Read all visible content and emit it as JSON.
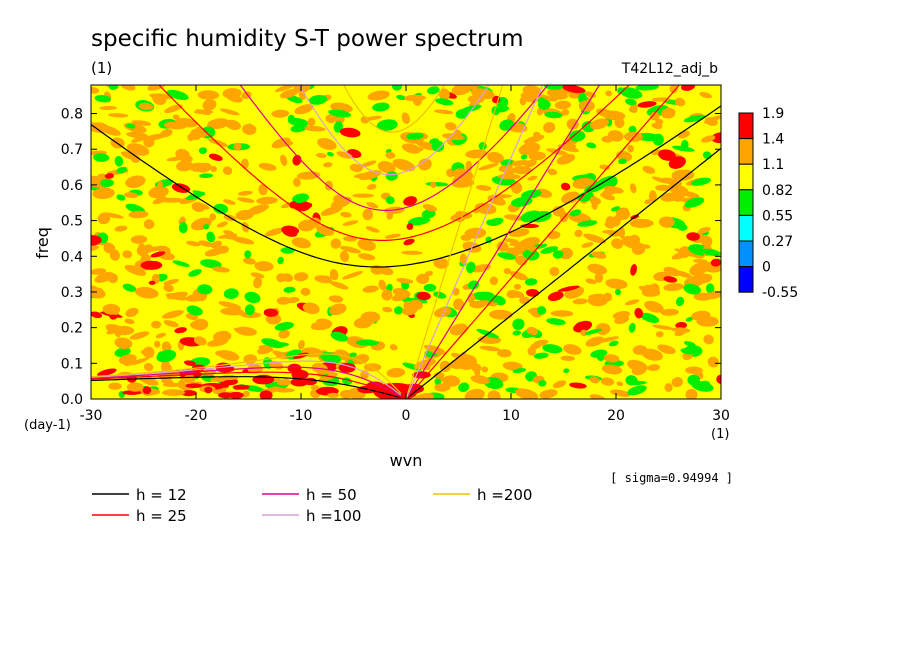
{
  "chart_data": {
    "type": "heatmap",
    "title": "specific humidity S-T power spectrum",
    "subtitle": "(1)",
    "run_label": "T42L12_adj_b",
    "xlabel": "wvn",
    "ylabel": "freq",
    "x_unit": "(1)",
    "y_unit": "(day-1)",
    "xlim": [
      -30,
      30
    ],
    "ylim": [
      0,
      0.88
    ],
    "x_ticks": [
      -30,
      -20,
      -10,
      0,
      10,
      20,
      30
    ],
    "x_tick_labels": [
      "-30",
      "-20",
      "-10",
      "0",
      "10",
      "20",
      "30"
    ],
    "y_ticks": [
      0,
      0.1,
      0.2,
      0.3,
      0.4,
      0.5,
      0.6,
      0.7,
      0.8
    ],
    "y_tick_labels": [
      "0.0",
      "0.1",
      "0.2",
      "0.3",
      "0.4",
      "0.5",
      "0.6",
      "0.7",
      "0.8"
    ],
    "colorbar": {
      "labels": [
        "1.9",
        "1.4",
        "1.1",
        "0.82",
        "0.55",
        "0.27",
        "0",
        "-0.55"
      ],
      "colors": [
        "#ff0000",
        "#ffa500",
        "#ffff00",
        "#00ee00",
        "#00ffff",
        "#0090ff",
        "#0000ff"
      ]
    },
    "sigma_note": "[ sigma=0.94994 ]",
    "dispersion_curves": [
      {
        "label": "h = 12",
        "color": "#000000",
        "h": 12
      },
      {
        "label": "h = 25",
        "color": "#ff0000",
        "h": 25
      },
      {
        "label": "h = 50",
        "color": "#e0008c",
        "h": 50
      },
      {
        "label": "h =100",
        "color": "#d8a0d8",
        "h": 100
      },
      {
        "label": "h =200",
        "color": "#f0c000",
        "h": 200
      }
    ]
  }
}
